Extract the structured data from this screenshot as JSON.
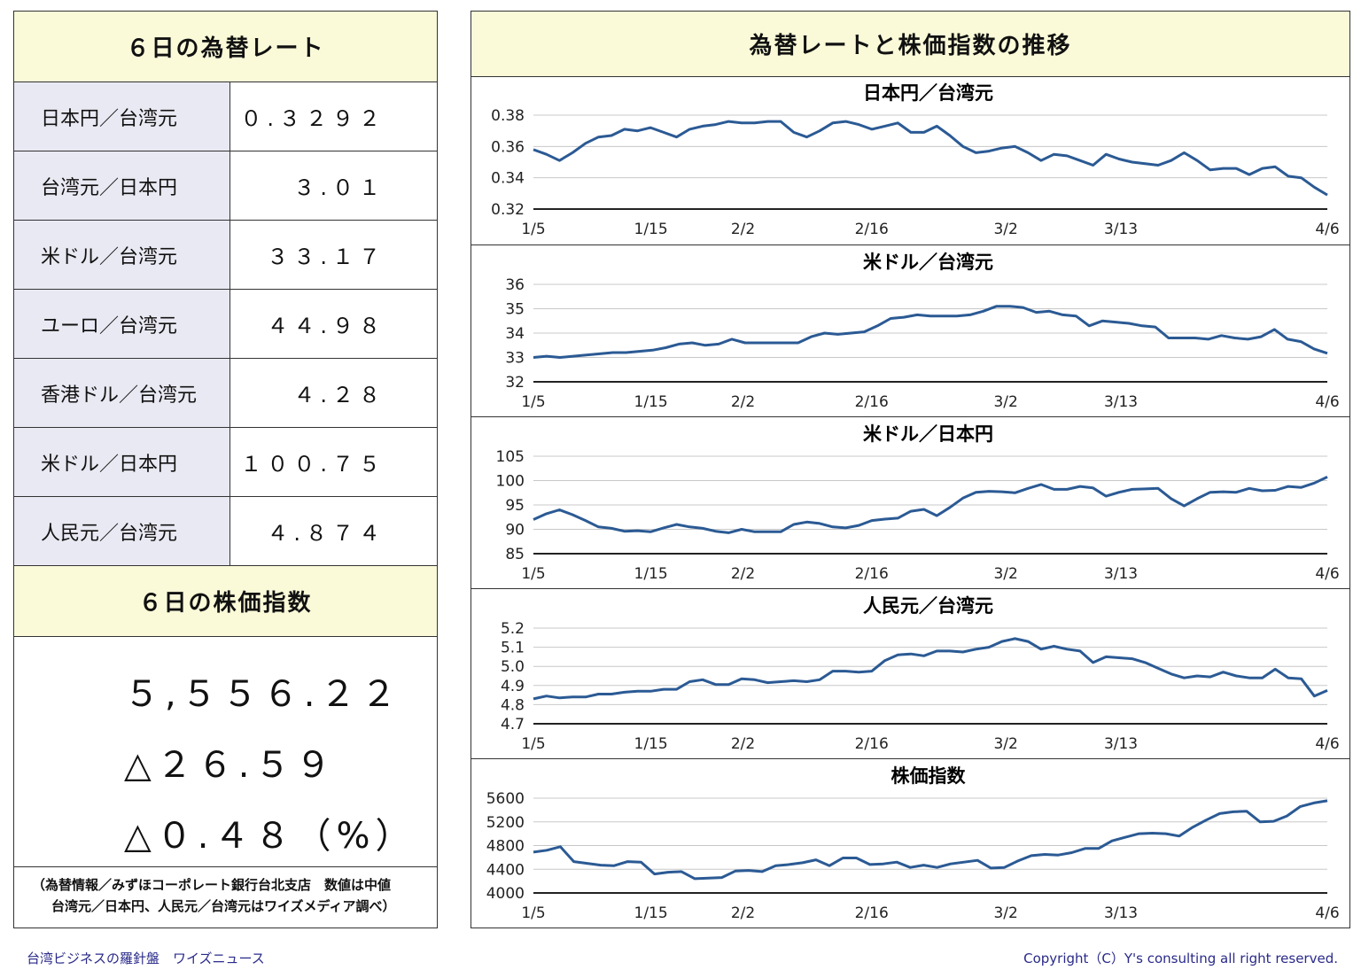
{
  "left_panel": {
    "title": "６日の為替レート",
    "rates": [
      {
        "pair": "日本円／台湾元",
        "value": "０.３２９２"
      },
      {
        "pair": "台湾元／日本円",
        "value": "３.０１"
      },
      {
        "pair": "米ドル／台湾元",
        "value": "３３.１７"
      },
      {
        "pair": "ユーロ／台湾元",
        "value": "４４.９８"
      },
      {
        "pair": "香港ドル／台湾元",
        "value": "４.２８"
      },
      {
        "pair": "米ドル／日本円",
        "value": "１００.７５"
      },
      {
        "pair": "人民元／台湾元",
        "value": "４.８７４"
      }
    ],
    "stock_title": "６日の株価指数",
    "stock_value": "５,５５６.２２",
    "stock_change": "△２６.５９",
    "stock_change_pct": "△０.４８（%）",
    "note_line1": "（為替情報／みずほコーポレート銀行台北支店　数値は中値",
    "note_line2": "台湾元／日本円、人民元／台湾元はワイズメディア調べ）"
  },
  "right_panel": {
    "title": "為替レートと株価指数の推移"
  },
  "footer": {
    "left": "台湾ビジネスの羅針盤　ワイズニュース",
    "right": "Copyright（C）Y's consulting all right reserved."
  },
  "chart_data": [
    {
      "type": "line",
      "title": "日本円／台湾元",
      "ylim": [
        0.32,
        0.38
      ],
      "yticks": [
        "0.38",
        "0.36",
        "0.34",
        "0.32"
      ],
      "xticks": [
        "1/5",
        "1/15",
        "2/2",
        "2/16",
        "3/2",
        "3/13",
        "4/6"
      ],
      "grid": true,
      "values": [
        0.358,
        0.355,
        0.351,
        0.356,
        0.362,
        0.366,
        0.367,
        0.371,
        0.37,
        0.372,
        0.369,
        0.366,
        0.371,
        0.373,
        0.374,
        0.376,
        0.375,
        0.375,
        0.376,
        0.376,
        0.369,
        0.366,
        0.37,
        0.375,
        0.376,
        0.374,
        0.371,
        0.373,
        0.375,
        0.369,
        0.369,
        0.373,
        0.367,
        0.36,
        0.356,
        0.357,
        0.359,
        0.36,
        0.356,
        0.351,
        0.355,
        0.354,
        0.351,
        0.348,
        0.355,
        0.352,
        0.35,
        0.349,
        0.348,
        0.351,
        0.356,
        0.351,
        0.345,
        0.346,
        0.346,
        0.342,
        0.346,
        0.347,
        0.341,
        0.34,
        0.334,
        0.329
      ]
    },
    {
      "type": "line",
      "title": "米ドル／台湾元",
      "ylim": [
        32,
        36
      ],
      "yticks": [
        "36",
        "35",
        "34",
        "33",
        "32"
      ],
      "xticks": [
        "1/5",
        "1/15",
        "2/2",
        "2/16",
        "3/2",
        "3/13",
        "4/6"
      ],
      "grid": true,
      "values": [
        33.0,
        33.05,
        33.0,
        33.05,
        33.1,
        33.15,
        33.2,
        33.2,
        33.25,
        33.3,
        33.4,
        33.55,
        33.6,
        33.5,
        33.55,
        33.75,
        33.6,
        33.6,
        33.6,
        33.6,
        33.6,
        33.85,
        34.0,
        33.95,
        34.0,
        34.05,
        34.3,
        34.6,
        34.65,
        34.75,
        34.7,
        34.7,
        34.7,
        34.75,
        34.9,
        35.1,
        35.1,
        35.05,
        34.85,
        34.9,
        34.75,
        34.7,
        34.3,
        34.5,
        34.45,
        34.4,
        34.3,
        34.25,
        33.8,
        33.8,
        33.8,
        33.75,
        33.9,
        33.8,
        33.75,
        33.85,
        34.15,
        33.75,
        33.65,
        33.35,
        33.17
      ]
    },
    {
      "type": "line",
      "title": "米ドル／日本円",
      "ylim": [
        85,
        105
      ],
      "yticks": [
        "105",
        "100",
        "95",
        "90",
        "85"
      ],
      "xticks": [
        "1/5",
        "1/15",
        "2/2",
        "2/16",
        "3/2",
        "3/13",
        "4/6"
      ],
      "grid": true,
      "values": [
        92.0,
        93.2,
        94.0,
        93.0,
        91.8,
        90.5,
        90.2,
        89.6,
        89.7,
        89.5,
        90.3,
        91.0,
        90.5,
        90.2,
        89.6,
        89.3,
        90.0,
        89.5,
        89.5,
        89.5,
        91.0,
        91.5,
        91.2,
        90.5,
        90.3,
        90.8,
        91.8,
        92.1,
        92.3,
        93.7,
        94.1,
        92.8,
        94.5,
        96.4,
        97.6,
        97.8,
        97.7,
        97.5,
        98.4,
        99.2,
        98.2,
        98.2,
        98.8,
        98.5,
        96.8,
        97.6,
        98.2,
        98.3,
        98.4,
        96.3,
        94.8,
        96.3,
        97.6,
        97.7,
        97.6,
        98.4,
        97.9,
        98.0,
        98.8,
        98.6,
        99.5,
        100.75
      ]
    },
    {
      "type": "line",
      "title": "人民元／台湾元",
      "ylim": [
        4.7,
        5.2
      ],
      "yticks": [
        "5.2",
        "5.1",
        "5.0",
        "4.9",
        "4.8",
        "4.7"
      ],
      "xticks": [
        "1/5",
        "1/15",
        "2/2",
        "2/16",
        "3/2",
        "3/13",
        "4/6"
      ],
      "grid": true,
      "values": [
        4.83,
        4.845,
        4.835,
        4.84,
        4.84,
        4.855,
        4.855,
        4.865,
        4.87,
        4.87,
        4.88,
        4.88,
        4.92,
        4.93,
        4.905,
        4.905,
        4.935,
        4.93,
        4.915,
        4.92,
        4.925,
        4.92,
        4.93,
        4.975,
        4.975,
        4.97,
        4.975,
        5.03,
        5.06,
        5.065,
        5.055,
        5.08,
        5.08,
        5.075,
        5.09,
        5.1,
        5.13,
        5.145,
        5.13,
        5.09,
        5.105,
        5.09,
        5.08,
        5.02,
        5.05,
        5.045,
        5.04,
        5.02,
        4.99,
        4.96,
        4.94,
        4.95,
        4.945,
        4.97,
        4.95,
        4.94,
        4.94,
        4.985,
        4.94,
        4.935,
        4.845,
        4.874
      ]
    },
    {
      "type": "line",
      "title": "株価指数",
      "ylim": [
        4000,
        5600
      ],
      "yticks": [
        "5600",
        "5200",
        "4800",
        "4400",
        "4000"
      ],
      "xticks": [
        "1/5",
        "1/15",
        "2/2",
        "2/16",
        "3/2",
        "3/13",
        "4/6"
      ],
      "grid": true,
      "values": [
        4690,
        4720,
        4780,
        4530,
        4500,
        4470,
        4460,
        4530,
        4520,
        4320,
        4350,
        4360,
        4240,
        4250,
        4260,
        4370,
        4380,
        4360,
        4460,
        4480,
        4510,
        4560,
        4460,
        4590,
        4590,
        4480,
        4490,
        4520,
        4430,
        4470,
        4430,
        4490,
        4520,
        4550,
        4420,
        4430,
        4540,
        4630,
        4650,
        4640,
        4680,
        4750,
        4750,
        4880,
        4940,
        5000,
        5010,
        5000,
        4960,
        5110,
        5230,
        5340,
        5370,
        5380,
        5200,
        5210,
        5300,
        5460,
        5520,
        5556.22
      ]
    }
  ]
}
